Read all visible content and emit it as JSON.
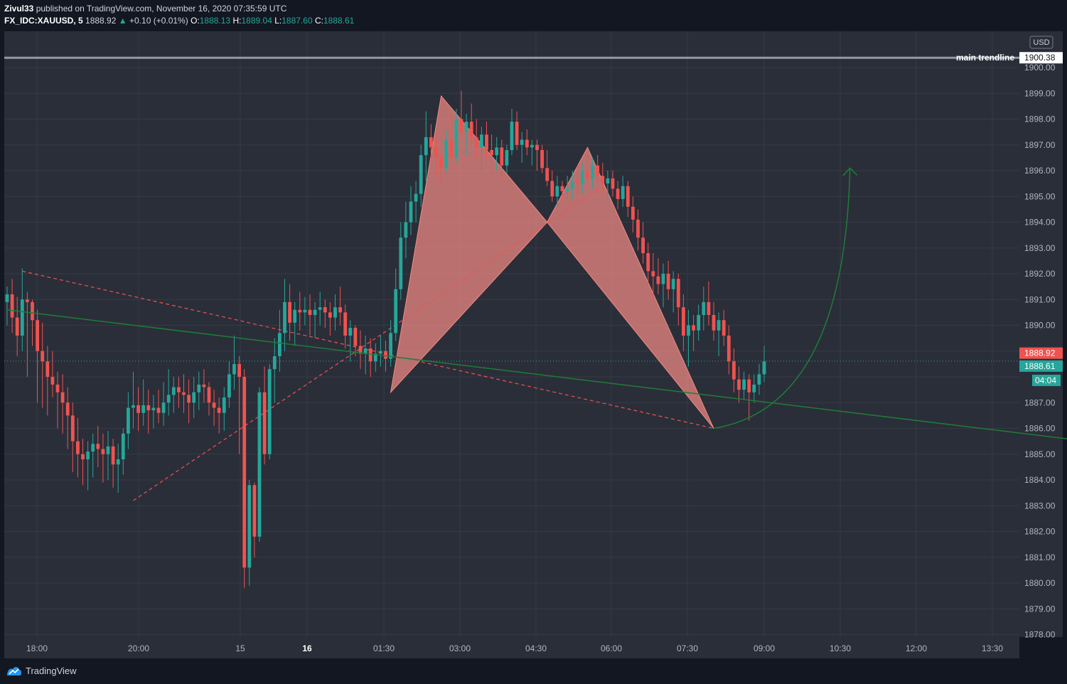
{
  "header": {
    "author": "Zivul33",
    "publish_text": "published on TradingView.com, November 16, 2020 07:35:59 UTC",
    "symbol": "FX_IDC:XAUUSD, 5",
    "last": "1888.92",
    "change_arrow": "▲",
    "change": "+0.10 (+0.01%)",
    "open_label": "O:",
    "open": "1888.13",
    "high_label": "H:",
    "high": "1889.04",
    "low_label": "L:",
    "low": "1887.60",
    "close_label": "C:",
    "close": "1888.61"
  },
  "footer": {
    "brand": "TradingView",
    "logo_icon": "tradingview-logo-icon"
  },
  "colors": {
    "background": "#131722",
    "chart_bg": "#2a2e39",
    "up": "#26a69a",
    "down": "#ef5350",
    "pattern_fill": "#f28b82",
    "trend_green": "#1e7d36",
    "resistance": "#9598a1",
    "axis_text": "#b2b5be"
  },
  "chart_data": {
    "type": "candlestick",
    "currency": "USD",
    "ylim": [
      1878,
      1901
    ],
    "y_ticks": [
      1878,
      1879,
      1880,
      1881,
      1882,
      1883,
      1884,
      1885,
      1886,
      1887,
      1888,
      1889,
      1890,
      1891,
      1892,
      1893,
      1894,
      1895,
      1896,
      1897,
      1898,
      1899,
      1900
    ],
    "y_tick_labels": [
      "1878.00",
      "1879.00",
      "1880.00",
      "1881.00",
      "1882.00",
      "1883.00",
      "1884.00",
      "1885.00",
      "1886.00",
      "1887.00",
      "",
      "",
      "1890.00",
      "1891.00",
      "1892.00",
      "1893.00",
      "1894.00",
      "1895.00",
      "1896.00",
      "1897.00",
      "1898.00",
      "1899.00",
      "1900.00"
    ],
    "x_ticks": [
      "18:00",
      "20:00",
      "15",
      "16",
      "01:30",
      "03:00",
      "04:30",
      "06:00",
      "07:30",
      "09:00",
      "10:30",
      "12:00",
      "13:30"
    ],
    "bold_x_ticks": [
      "16"
    ],
    "price_labels": [
      {
        "value": 1900.38,
        "text": "1900.38",
        "style": "resistance"
      },
      {
        "value": 1888.92,
        "text": "1888.92",
        "style": "down"
      },
      {
        "value": 1888.61,
        "text": "1888.61",
        "style": "up"
      }
    ],
    "countdown": "04:04",
    "hline": {
      "value": 1900.38,
      "label": "main trendline"
    },
    "candles": [
      {
        "o": 1890.9,
        "h": 1891.5,
        "l": 1890.0,
        "c": 1891.2
      },
      {
        "o": 1891.2,
        "h": 1891.8,
        "l": 1889.7,
        "c": 1890.3
      },
      {
        "o": 1890.3,
        "h": 1891.1,
        "l": 1888.8,
        "c": 1889.6
      },
      {
        "o": 1889.6,
        "h": 1892.2,
        "l": 1889.0,
        "c": 1891.0
      },
      {
        "o": 1891.0,
        "h": 1891.3,
        "l": 1888.0,
        "c": 1890.9
      },
      {
        "o": 1890.9,
        "h": 1891.0,
        "l": 1889.2,
        "c": 1890.2
      },
      {
        "o": 1890.2,
        "h": 1890.6,
        "l": 1887.0,
        "c": 1889.0
      },
      {
        "o": 1889.0,
        "h": 1890.1,
        "l": 1886.8,
        "c": 1888.6
      },
      {
        "o": 1888.6,
        "h": 1889.2,
        "l": 1886.5,
        "c": 1888.0
      },
      {
        "o": 1888.0,
        "h": 1889.0,
        "l": 1887.2,
        "c": 1887.7
      },
      {
        "o": 1887.7,
        "h": 1888.2,
        "l": 1886.0,
        "c": 1887.4
      },
      {
        "o": 1887.4,
        "h": 1888.1,
        "l": 1885.8,
        "c": 1887.0
      },
      {
        "o": 1887.0,
        "h": 1887.6,
        "l": 1885.2,
        "c": 1886.5
      },
      {
        "o": 1886.5,
        "h": 1887.0,
        "l": 1884.3,
        "c": 1885.5
      },
      {
        "o": 1885.5,
        "h": 1886.4,
        "l": 1884.1,
        "c": 1885.0
      },
      {
        "o": 1885.0,
        "h": 1885.6,
        "l": 1883.8,
        "c": 1884.8
      },
      {
        "o": 1884.8,
        "h": 1885.5,
        "l": 1883.6,
        "c": 1885.1
      },
      {
        "o": 1885.1,
        "h": 1885.8,
        "l": 1884.1,
        "c": 1885.4
      },
      {
        "o": 1885.4,
        "h": 1886.1,
        "l": 1884.5,
        "c": 1885.2
      },
      {
        "o": 1885.2,
        "h": 1885.8,
        "l": 1883.9,
        "c": 1885.0
      },
      {
        "o": 1885.0,
        "h": 1885.9,
        "l": 1884.0,
        "c": 1885.3
      },
      {
        "o": 1885.3,
        "h": 1885.6,
        "l": 1883.7,
        "c": 1884.6
      },
      {
        "o": 1884.6,
        "h": 1885.4,
        "l": 1883.5,
        "c": 1884.8
      },
      {
        "o": 1884.8,
        "h": 1886.0,
        "l": 1884.2,
        "c": 1885.8
      },
      {
        "o": 1885.8,
        "h": 1887.4,
        "l": 1885.2,
        "c": 1886.8
      },
      {
        "o": 1886.8,
        "h": 1888.2,
        "l": 1886.0,
        "c": 1886.9
      },
      {
        "o": 1886.9,
        "h": 1887.6,
        "l": 1885.9,
        "c": 1886.6
      },
      {
        "o": 1886.6,
        "h": 1887.9,
        "l": 1886.1,
        "c": 1886.9
      },
      {
        "o": 1886.9,
        "h": 1887.5,
        "l": 1885.8,
        "c": 1886.7
      },
      {
        "o": 1886.7,
        "h": 1887.3,
        "l": 1886.0,
        "c": 1886.8
      },
      {
        "o": 1886.8,
        "h": 1887.5,
        "l": 1886.2,
        "c": 1886.6
      },
      {
        "o": 1886.6,
        "h": 1887.8,
        "l": 1886.1,
        "c": 1887.0
      },
      {
        "o": 1887.0,
        "h": 1888.3,
        "l": 1886.5,
        "c": 1887.3
      },
      {
        "o": 1887.3,
        "h": 1888.0,
        "l": 1886.6,
        "c": 1887.6
      },
      {
        "o": 1887.6,
        "h": 1888.0,
        "l": 1886.8,
        "c": 1887.4
      },
      {
        "o": 1887.4,
        "h": 1888.1,
        "l": 1886.6,
        "c": 1887.3
      },
      {
        "o": 1887.3,
        "h": 1887.9,
        "l": 1886.2,
        "c": 1887.0
      },
      {
        "o": 1887.0,
        "h": 1888.0,
        "l": 1886.4,
        "c": 1887.4
      },
      {
        "o": 1887.4,
        "h": 1888.2,
        "l": 1886.7,
        "c": 1887.7
      },
      {
        "o": 1887.7,
        "h": 1888.3,
        "l": 1887.0,
        "c": 1887.6
      },
      {
        "o": 1887.6,
        "h": 1887.8,
        "l": 1886.5,
        "c": 1887.0
      },
      {
        "o": 1887.0,
        "h": 1887.5,
        "l": 1886.1,
        "c": 1886.8
      },
      {
        "o": 1886.8,
        "h": 1887.2,
        "l": 1885.8,
        "c": 1886.6
      },
      {
        "o": 1886.6,
        "h": 1887.6,
        "l": 1885.9,
        "c": 1887.2
      },
      {
        "o": 1887.2,
        "h": 1888.6,
        "l": 1886.8,
        "c": 1888.1
      },
      {
        "o": 1888.1,
        "h": 1889.6,
        "l": 1887.5,
        "c": 1888.5
      },
      {
        "o": 1888.5,
        "h": 1888.8,
        "l": 1885.0,
        "c": 1888.0
      },
      {
        "o": 1888.0,
        "h": 1888.3,
        "l": 1879.8,
        "c": 1880.6
      },
      {
        "o": 1880.6,
        "h": 1884.0,
        "l": 1879.9,
        "c": 1883.8
      },
      {
        "o": 1883.8,
        "h": 1883.9,
        "l": 1881.0,
        "c": 1881.8
      },
      {
        "o": 1881.8,
        "h": 1887.6,
        "l": 1881.6,
        "c": 1887.4
      },
      {
        "o": 1887.4,
        "h": 1888.4,
        "l": 1884.6,
        "c": 1885.0
      },
      {
        "o": 1885.0,
        "h": 1888.5,
        "l": 1884.8,
        "c": 1888.3
      },
      {
        "o": 1888.3,
        "h": 1889.5,
        "l": 1887.0,
        "c": 1888.8
      },
      {
        "o": 1888.8,
        "h": 1890.6,
        "l": 1888.2,
        "c": 1889.7
      },
      {
        "o": 1889.7,
        "h": 1891.8,
        "l": 1889.0,
        "c": 1890.9
      },
      {
        "o": 1890.9,
        "h": 1891.6,
        "l": 1889.4,
        "c": 1890.1
      },
      {
        "o": 1890.1,
        "h": 1890.9,
        "l": 1889.2,
        "c": 1890.6
      },
      {
        "o": 1890.6,
        "h": 1891.3,
        "l": 1889.8,
        "c": 1890.5
      },
      {
        "o": 1890.5,
        "h": 1891.1,
        "l": 1890.0,
        "c": 1890.6
      },
      {
        "o": 1890.6,
        "h": 1891.2,
        "l": 1889.6,
        "c": 1890.4
      },
      {
        "o": 1890.4,
        "h": 1890.9,
        "l": 1889.5,
        "c": 1890.6
      },
      {
        "o": 1890.6,
        "h": 1891.3,
        "l": 1890.0,
        "c": 1890.7
      },
      {
        "o": 1890.7,
        "h": 1891.0,
        "l": 1889.9,
        "c": 1890.5
      },
      {
        "o": 1890.5,
        "h": 1890.9,
        "l": 1889.6,
        "c": 1890.3
      },
      {
        "o": 1890.3,
        "h": 1891.2,
        "l": 1889.8,
        "c": 1890.7
      },
      {
        "o": 1890.7,
        "h": 1891.5,
        "l": 1890.0,
        "c": 1890.5
      },
      {
        "o": 1890.5,
        "h": 1890.8,
        "l": 1889.1,
        "c": 1889.6
      },
      {
        "o": 1889.6,
        "h": 1890.2,
        "l": 1888.6,
        "c": 1889.9
      },
      {
        "o": 1889.9,
        "h": 1890.0,
        "l": 1888.8,
        "c": 1889.2
      },
      {
        "o": 1889.2,
        "h": 1889.8,
        "l": 1888.3,
        "c": 1888.9
      },
      {
        "o": 1888.9,
        "h": 1889.6,
        "l": 1888.1,
        "c": 1889.1
      },
      {
        "o": 1889.1,
        "h": 1889.5,
        "l": 1888.0,
        "c": 1888.6
      },
      {
        "o": 1888.6,
        "h": 1889.3,
        "l": 1888.2,
        "c": 1888.9
      },
      {
        "o": 1888.9,
        "h": 1889.6,
        "l": 1888.4,
        "c": 1889.0
      },
      {
        "o": 1889.0,
        "h": 1889.4,
        "l": 1888.2,
        "c": 1888.7
      },
      {
        "o": 1888.7,
        "h": 1890.2,
        "l": 1888.4,
        "c": 1889.7
      },
      {
        "o": 1889.7,
        "h": 1892.2,
        "l": 1889.4,
        "c": 1891.4
      },
      {
        "o": 1891.4,
        "h": 1894.0,
        "l": 1891.0,
        "c": 1893.4
      },
      {
        "o": 1893.4,
        "h": 1894.8,
        "l": 1892.6,
        "c": 1894.0
      },
      {
        "o": 1894.0,
        "h": 1895.4,
        "l": 1893.5,
        "c": 1894.8
      },
      {
        "o": 1894.8,
        "h": 1895.6,
        "l": 1894.0,
        "c": 1895.1
      },
      {
        "o": 1895.1,
        "h": 1897.0,
        "l": 1894.6,
        "c": 1896.6
      },
      {
        "o": 1896.6,
        "h": 1898.3,
        "l": 1895.6,
        "c": 1897.3
      },
      {
        "o": 1897.3,
        "h": 1897.8,
        "l": 1896.2,
        "c": 1896.9
      },
      {
        "o": 1896.9,
        "h": 1897.4,
        "l": 1895.8,
        "c": 1896.5
      },
      {
        "o": 1896.5,
        "h": 1897.0,
        "l": 1895.5,
        "c": 1896.1
      },
      {
        "o": 1896.1,
        "h": 1897.6,
        "l": 1895.9,
        "c": 1897.2
      },
      {
        "o": 1897.2,
        "h": 1898.2,
        "l": 1896.4,
        "c": 1896.5
      },
      {
        "o": 1896.5,
        "h": 1898.4,
        "l": 1896.3,
        "c": 1898.0
      },
      {
        "o": 1898.0,
        "h": 1899.1,
        "l": 1897.2,
        "c": 1897.5
      },
      {
        "o": 1897.5,
        "h": 1898.2,
        "l": 1896.6,
        "c": 1897.9
      },
      {
        "o": 1897.9,
        "h": 1898.6,
        "l": 1896.9,
        "c": 1897.3
      },
      {
        "o": 1897.3,
        "h": 1898.0,
        "l": 1896.5,
        "c": 1896.9
      },
      {
        "o": 1896.9,
        "h": 1897.7,
        "l": 1896.0,
        "c": 1897.4
      },
      {
        "o": 1897.4,
        "h": 1897.9,
        "l": 1896.4,
        "c": 1896.8
      },
      {
        "o": 1896.8,
        "h": 1897.4,
        "l": 1895.8,
        "c": 1896.6
      },
      {
        "o": 1896.6,
        "h": 1897.3,
        "l": 1896.0,
        "c": 1896.9
      },
      {
        "o": 1896.9,
        "h": 1897.2,
        "l": 1895.6,
        "c": 1896.2
      },
      {
        "o": 1896.2,
        "h": 1897.0,
        "l": 1895.9,
        "c": 1896.8
      },
      {
        "o": 1896.8,
        "h": 1898.4,
        "l": 1896.6,
        "c": 1897.9
      },
      {
        "o": 1897.9,
        "h": 1898.3,
        "l": 1896.8,
        "c": 1897.0
      },
      {
        "o": 1897.0,
        "h": 1897.5,
        "l": 1896.3,
        "c": 1897.2
      },
      {
        "o": 1897.2,
        "h": 1897.6,
        "l": 1896.6,
        "c": 1896.9
      },
      {
        "o": 1896.9,
        "h": 1897.2,
        "l": 1896.2,
        "c": 1897.0
      },
      {
        "o": 1897.0,
        "h": 1897.2,
        "l": 1896.0,
        "c": 1896.8
      },
      {
        "o": 1896.8,
        "h": 1897.0,
        "l": 1895.9,
        "c": 1896.1
      },
      {
        "o": 1896.1,
        "h": 1896.8,
        "l": 1895.4,
        "c": 1895.6
      },
      {
        "o": 1895.6,
        "h": 1896.0,
        "l": 1894.8,
        "c": 1895.0
      },
      {
        "o": 1895.0,
        "h": 1895.8,
        "l": 1894.6,
        "c": 1895.4
      },
      {
        "o": 1895.4,
        "h": 1895.6,
        "l": 1894.8,
        "c": 1895.2
      },
      {
        "o": 1895.2,
        "h": 1895.8,
        "l": 1894.9,
        "c": 1895.3
      },
      {
        "o": 1895.3,
        "h": 1896.0,
        "l": 1894.9,
        "c": 1895.6
      },
      {
        "o": 1895.6,
        "h": 1896.2,
        "l": 1895.0,
        "c": 1895.5
      },
      {
        "o": 1895.5,
        "h": 1896.3,
        "l": 1895.1,
        "c": 1896.0
      },
      {
        "o": 1896.0,
        "h": 1896.6,
        "l": 1895.4,
        "c": 1895.7
      },
      {
        "o": 1895.7,
        "h": 1896.5,
        "l": 1895.3,
        "c": 1896.2
      },
      {
        "o": 1896.2,
        "h": 1896.6,
        "l": 1895.5,
        "c": 1895.8
      },
      {
        "o": 1895.8,
        "h": 1896.3,
        "l": 1895.1,
        "c": 1895.5
      },
      {
        "o": 1895.5,
        "h": 1896.0,
        "l": 1894.9,
        "c": 1895.7
      },
      {
        "o": 1895.7,
        "h": 1896.0,
        "l": 1895.0,
        "c": 1895.3
      },
      {
        "o": 1895.3,
        "h": 1895.6,
        "l": 1894.5,
        "c": 1894.9
      },
      {
        "o": 1894.9,
        "h": 1895.8,
        "l": 1894.6,
        "c": 1895.4
      },
      {
        "o": 1895.4,
        "h": 1895.6,
        "l": 1894.2,
        "c": 1894.6
      },
      {
        "o": 1894.6,
        "h": 1895.0,
        "l": 1893.6,
        "c": 1894.1
      },
      {
        "o": 1894.1,
        "h": 1894.5,
        "l": 1892.9,
        "c": 1893.4
      },
      {
        "o": 1893.4,
        "h": 1894.0,
        "l": 1892.4,
        "c": 1892.8
      },
      {
        "o": 1892.8,
        "h": 1893.2,
        "l": 1891.6,
        "c": 1892.1
      },
      {
        "o": 1892.1,
        "h": 1892.8,
        "l": 1891.0,
        "c": 1891.9
      },
      {
        "o": 1891.9,
        "h": 1892.6,
        "l": 1891.2,
        "c": 1891.6
      },
      {
        "o": 1891.6,
        "h": 1892.4,
        "l": 1890.7,
        "c": 1892.0
      },
      {
        "o": 1892.0,
        "h": 1892.5,
        "l": 1891.0,
        "c": 1891.4
      },
      {
        "o": 1891.4,
        "h": 1892.1,
        "l": 1890.5,
        "c": 1891.8
      },
      {
        "o": 1891.8,
        "h": 1892.0,
        "l": 1890.0,
        "c": 1890.7
      },
      {
        "o": 1890.7,
        "h": 1891.2,
        "l": 1889.0,
        "c": 1889.6
      },
      {
        "o": 1889.6,
        "h": 1890.6,
        "l": 1888.4,
        "c": 1890.0
      },
      {
        "o": 1890.0,
        "h": 1890.4,
        "l": 1889.0,
        "c": 1889.8
      },
      {
        "o": 1889.8,
        "h": 1890.8,
        "l": 1889.4,
        "c": 1890.4
      },
      {
        "o": 1890.4,
        "h": 1891.5,
        "l": 1889.8,
        "c": 1890.9
      },
      {
        "o": 1890.9,
        "h": 1891.7,
        "l": 1890.0,
        "c": 1890.4
      },
      {
        "o": 1890.4,
        "h": 1890.9,
        "l": 1889.4,
        "c": 1889.8
      },
      {
        "o": 1889.8,
        "h": 1890.5,
        "l": 1888.8,
        "c": 1890.2
      },
      {
        "o": 1890.2,
        "h": 1890.6,
        "l": 1889.2,
        "c": 1889.6
      },
      {
        "o": 1889.6,
        "h": 1890.0,
        "l": 1888.1,
        "c": 1888.6
      },
      {
        "o": 1888.6,
        "h": 1889.1,
        "l": 1887.4,
        "c": 1887.9
      },
      {
        "o": 1887.9,
        "h": 1888.4,
        "l": 1887.0,
        "c": 1887.5
      },
      {
        "o": 1887.5,
        "h": 1888.2,
        "l": 1887.1,
        "c": 1887.9
      },
      {
        "o": 1887.9,
        "h": 1888.1,
        "l": 1886.3,
        "c": 1887.4
      },
      {
        "o": 1887.4,
        "h": 1888.1,
        "l": 1887.0,
        "c": 1887.7
      },
      {
        "o": 1887.7,
        "h": 1888.5,
        "l": 1887.3,
        "c": 1888.1
      },
      {
        "o": 1888.1,
        "h": 1889.2,
        "l": 1887.8,
        "c": 1888.6
      }
    ],
    "pattern": {
      "name": "bat harmonic",
      "X": {
        "i": 76,
        "p": 1887.4
      },
      "A": {
        "i": 86,
        "p": 1898.9
      },
      "B": {
        "i": 107,
        "p": 1894.0
      },
      "C": {
        "i": 115,
        "p": 1896.9
      },
      "D": {
        "i": 140,
        "p": 1886.0
      }
    },
    "dashed_lines": [
      {
        "from": {
          "i": 3,
          "p": 1892.1
        },
        "to": {
          "i": 140,
          "p": 1886.0
        }
      },
      {
        "from": {
          "i": 25,
          "p": 1883.2
        },
        "to": {
          "i": 118,
          "p": 1895.4
        }
      }
    ],
    "trend_line": {
      "from": {
        "i": 0,
        "p": 1890.6
      },
      "to": {
        "i": 214,
        "p": 1885.5
      }
    },
    "projection_arrow": {
      "from": {
        "i": 140,
        "p": 1886.0
      },
      "to": {
        "i": 167,
        "p": 1896.1
      }
    }
  }
}
